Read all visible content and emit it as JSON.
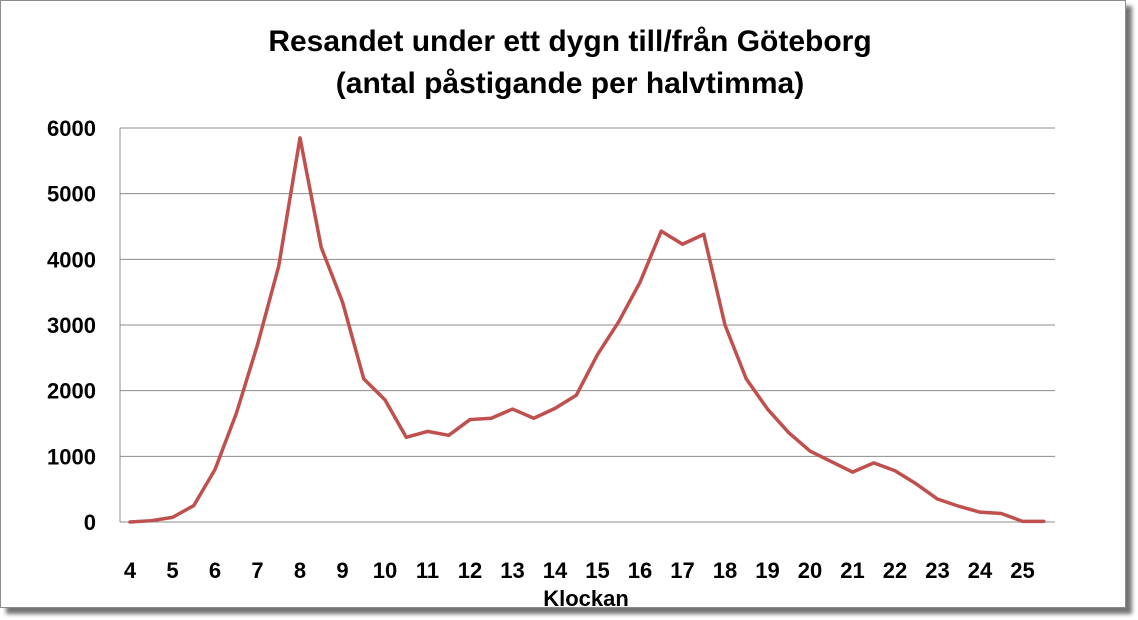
{
  "chart_data": {
    "type": "line",
    "title": "Resandet under ett dygn till/från Göteborg",
    "subtitle": "(antal påstigande per halvtimma)",
    "xlabel": "Klockan",
    "ylabel": "",
    "ylim": [
      0,
      6000
    ],
    "xlim": [
      4,
      25.75
    ],
    "yticks": [
      0,
      1000,
      2000,
      3000,
      4000,
      5000,
      6000
    ],
    "xticks": [
      4,
      5,
      6,
      7,
      8,
      9,
      10,
      11,
      12,
      13,
      14,
      15,
      16,
      17,
      18,
      19,
      20,
      21,
      22,
      23,
      24,
      25
    ],
    "grid": true,
    "legend": "none",
    "series_color": "#c0504d",
    "series": [
      {
        "x": [
          4.0,
          4.5,
          5.0,
          5.5,
          6.0,
          6.5,
          7.0,
          7.5,
          8.0,
          8.5,
          9.0,
          9.5,
          10.0,
          10.5,
          11.0,
          11.5,
          12.0,
          12.5,
          13.0,
          13.5,
          14.0,
          14.5,
          15.0,
          15.5,
          16.0,
          16.5,
          17.0,
          17.5,
          18.0,
          18.5,
          19.0,
          19.5,
          20.0,
          20.5,
          21.0,
          21.5,
          22.0,
          22.5,
          23.0,
          23.5,
          24.0,
          24.5,
          25.0,
          25.5
        ],
        "values": [
          0,
          20,
          70,
          250,
          800,
          1650,
          2700,
          3900,
          5850,
          4180,
          3350,
          2180,
          1860,
          1290,
          1380,
          1320,
          1560,
          1580,
          1720,
          1580,
          1730,
          1930,
          2550,
          3050,
          3650,
          4430,
          4230,
          4380,
          3000,
          2180,
          1720,
          1360,
          1080,
          920,
          760,
          900,
          780,
          580,
          350,
          240,
          150,
          130,
          10,
          10
        ]
      }
    ]
  }
}
